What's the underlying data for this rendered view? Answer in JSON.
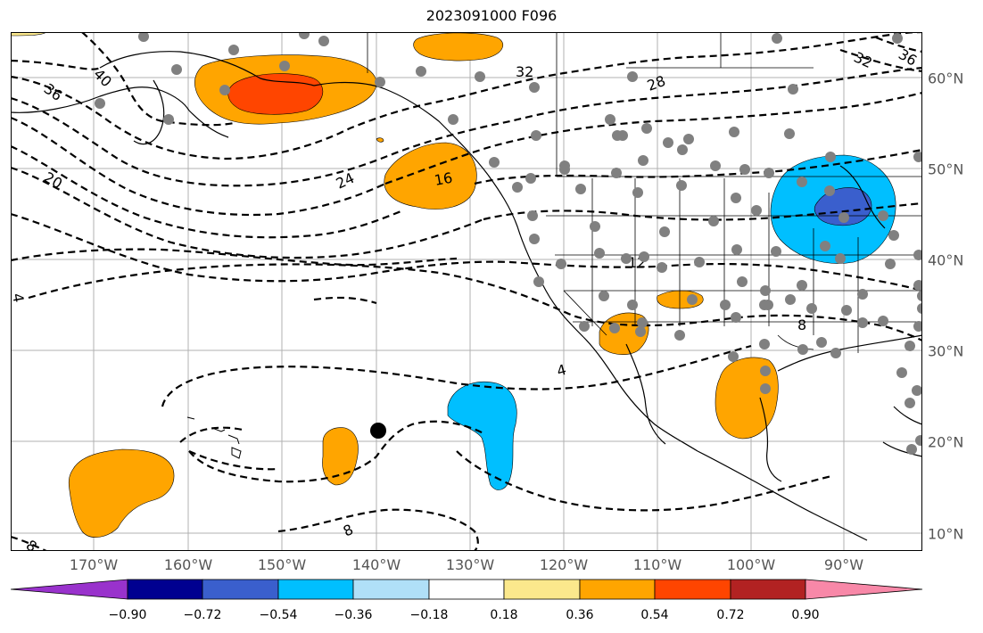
{
  "title": "2023091000 F096",
  "lon_labels": [
    "170°W",
    "160°W",
    "150°W",
    "140°W",
    "130°W",
    "120°W",
    "110°W",
    "100°W",
    "90°W"
  ],
  "lat_labels": [
    "60°N",
    "50°N",
    "40°N",
    "30°N",
    "20°N",
    "10°N"
  ],
  "colorbar": {
    "tick_labels": [
      "−0.90",
      "−0.72",
      "−0.54",
      "−0.36",
      "−0.18",
      "0.18",
      "0.36",
      "0.54",
      "0.72",
      "0.90"
    ],
    "colors": [
      "#9932cc",
      "#000090",
      "#3a5fcd",
      "#00bfff",
      "#b0e0f8",
      "#ffffff",
      "#fbe88c",
      "#ffa500",
      "#ff4500",
      "#b22222",
      "#f888a8"
    ]
  },
  "contour_labels": [
    "40",
    "36",
    "32",
    "32",
    "28",
    "24",
    "20",
    "16",
    "12",
    "8",
    "8",
    "8",
    "4",
    "4",
    "36"
  ],
  "anomaly_colors": {
    "orange": "#ffa500",
    "red_orange": "#ff4500",
    "light_yellow": "#fbe88c",
    "cyan": "#00bfff",
    "royal_blue": "#3a5fcd"
  },
  "station_marker_color": "#808080",
  "storm_marker_color": "#000000",
  "grid_color": "#b0b0b0"
}
